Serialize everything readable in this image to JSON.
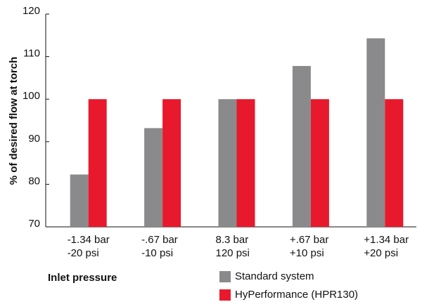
{
  "chart_data": {
    "type": "bar",
    "ylabel": "% of desired flow at torch",
    "xlabel": "Inlet pressure",
    "categories": [
      "-1.34 bar\n-20 psi",
      "-.67 bar\n-10 psi",
      "8.3 bar\n120 psi",
      "+.67 bar\n+10 psi",
      "+1.34 bar\n+20 psi"
    ],
    "series": [
      {
        "name": "Standard system",
        "color": "#8a8a8c",
        "values": [
          82.3,
          93.2,
          100,
          107.8,
          114.3
        ]
      },
      {
        "name": "HyPerformance (HPR130)",
        "color": "#e8192c",
        "values": [
          100,
          100,
          100,
          100,
          100
        ]
      }
    ],
    "ylim": [
      70,
      120
    ],
    "yticks": [
      70,
      80,
      90,
      100,
      110,
      120
    ],
    "grid": false,
    "legend": "bottom"
  }
}
